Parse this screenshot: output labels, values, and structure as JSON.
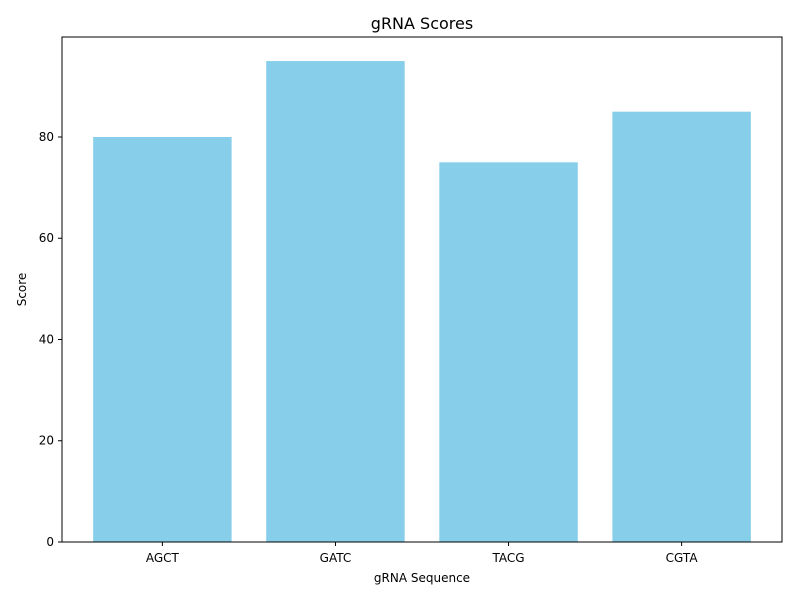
{
  "chart_data": {
    "type": "bar",
    "title": "gRNA Scores",
    "xlabel": "gRNA Sequence",
    "ylabel": "Score",
    "categories": [
      "AGCT",
      "GATC",
      "TACG",
      "CGTA"
    ],
    "values": [
      80,
      95,
      75,
      85
    ],
    "ylim": [
      0,
      99.75
    ],
    "yticks": [
      0,
      20,
      40,
      60,
      80
    ],
    "bar_color": "#87ceeb",
    "grid": false,
    "legend": "none"
  }
}
